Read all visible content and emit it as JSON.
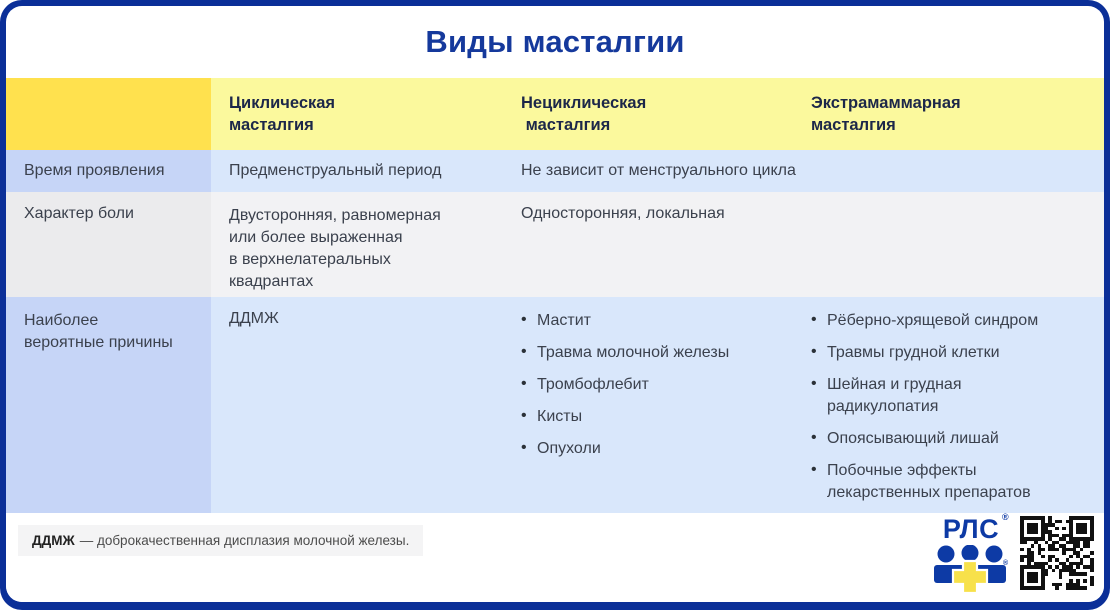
{
  "title": "Виды масталгии",
  "table": {
    "columns": [
      "Циклическая\nмасталгия",
      "Нециклическая\n масталгия",
      "Экстрамаммарная\nмасталгия"
    ],
    "rows": [
      {
        "label": "Время проявления",
        "cyclic": "Предменструальный период",
        "merged": "Не зависит от менструального цикла"
      },
      {
        "label": "Характер боли",
        "cyclic": "Двусторонняя, равномерная\nили более выраженная\nв верхнелатеральных\nквадрантах",
        "merged": "Односторонняя, локальная"
      },
      {
        "label": "Наиболее\nвероятные причины",
        "cyclic": "ДДМЖ",
        "noncyclic_items": [
          "Мастит",
          "Травма молочной железы",
          "Тромбофлебит",
          "Кисты",
          "Опухоли"
        ],
        "extramammary_items": [
          "Рёберно-хрящевой синдром",
          "Травмы грудной клетки",
          "Шейная и грудная радикулопатия",
          "Опоясывающий лишай",
          "Побочные эффекты лекарственных препаратов"
        ]
      }
    ]
  },
  "footnote": {
    "term": "ДДМЖ",
    "text": "— доброкачественная дисплазия молочной железы."
  },
  "logo": {
    "text": "РЛС",
    "reg": "®"
  },
  "colors": {
    "border_navy": "#0b2f98",
    "title_blue": "#15399c",
    "header_yellow_bright": "#ffe14e",
    "header_yellow_pale": "#fbf99d",
    "label_blue": "#c6d5f7",
    "data_blue": "#d9e7fb",
    "label_gray": "#ebebed",
    "data_gray": "#f2f2f4",
    "footnote_bg": "#f4f4f5",
    "logo_blue": "#0d3aa5",
    "logo_cross_yellow": "#f7e14a",
    "body_text": "#3b414d",
    "header_text": "#1c2749"
  }
}
